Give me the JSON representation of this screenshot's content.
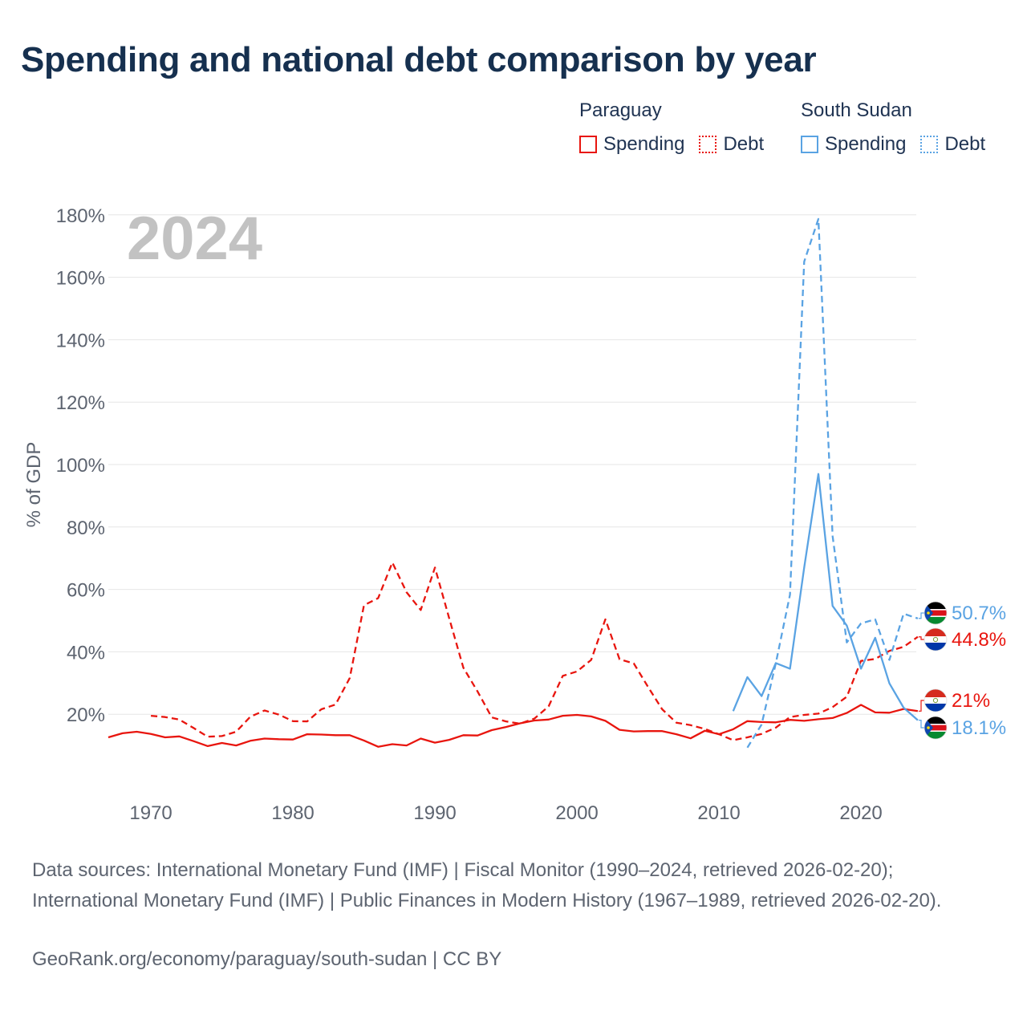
{
  "title": "Spending and national debt comparison by year",
  "legend": {
    "groups": [
      {
        "country": "Paraguay",
        "spending_label": "Spending",
        "debt_label": "Debt",
        "color": "#e8150e"
      },
      {
        "country": "South Sudan",
        "spending_label": "Spending",
        "debt_label": "Debt",
        "color": "#5aa3e3"
      }
    ]
  },
  "year_watermark": "2024",
  "flags": [
    {
      "name": "south-sudan-flag-icon",
      "country": "South Sudan",
      "series": "debt"
    },
    {
      "name": "paraguay-flag-icon",
      "country": "Paraguay",
      "series": "debt"
    },
    {
      "name": "paraguay-flag-icon",
      "country": "Paraguay",
      "series": "spending"
    },
    {
      "name": "south-sudan-flag-icon",
      "country": "South Sudan",
      "series": "spending"
    }
  ],
  "footer": {
    "source": "Data sources: International Monetary Fund (IMF) | Fiscal Monitor (1990–2024, retrieved 2026-02-20); International Monetary Fund (IMF) | Public Finances in Modern History (1967–1989, retrieved 2026-02-20).",
    "credit": "GeoRank.org/economy/paraguay/south-sudan | CC BY"
  },
  "chart_data": {
    "type": "line",
    "title": "Spending and national debt comparison by year",
    "xlabel": "",
    "ylabel": "% of GDP",
    "xlim": [
      1967,
      2024
    ],
    "ylim": [
      0,
      180
    ],
    "xticks": [
      1970,
      1980,
      1990,
      2000,
      2010,
      2020
    ],
    "yticks": [
      20,
      40,
      60,
      80,
      100,
      120,
      140,
      160,
      180
    ],
    "ytick_labels": [
      "20%",
      "40%",
      "60%",
      "80%",
      "100%",
      "120%",
      "140%",
      "160%",
      "180%"
    ],
    "grid": true,
    "series": [
      {
        "name": "Paraguay Spending",
        "country": "Paraguay",
        "kind": "Spending",
        "color": "#e8150e",
        "dash": "solid",
        "end_label": "21%",
        "points": [
          [
            1967,
            12.6
          ],
          [
            1968,
            13.9
          ],
          [
            1969,
            14.4
          ],
          [
            1970,
            13.7
          ],
          [
            1971,
            12.6
          ],
          [
            1972,
            12.9
          ],
          [
            1973,
            11.4
          ],
          [
            1974,
            9.8
          ],
          [
            1975,
            10.8
          ],
          [
            1976,
            10.0
          ],
          [
            1977,
            11.5
          ],
          [
            1978,
            12.2
          ],
          [
            1979,
            12.0
          ],
          [
            1980,
            11.9
          ],
          [
            1981,
            13.6
          ],
          [
            1982,
            13.5
          ],
          [
            1983,
            13.3
          ],
          [
            1984,
            13.3
          ],
          [
            1985,
            11.6
          ],
          [
            1986,
            9.6
          ],
          [
            1987,
            10.4
          ],
          [
            1988,
            10.0
          ],
          [
            1989,
            12.2
          ],
          [
            1990,
            10.9
          ],
          [
            1991,
            11.8
          ],
          [
            1992,
            13.3
          ],
          [
            1993,
            13.2
          ],
          [
            1994,
            14.9
          ],
          [
            1995,
            15.9
          ],
          [
            1996,
            17.1
          ],
          [
            1997,
            18.0
          ],
          [
            1998,
            18.3
          ],
          [
            1999,
            19.5
          ],
          [
            2000,
            19.8
          ],
          [
            2001,
            19.3
          ],
          [
            2002,
            17.9
          ],
          [
            2003,
            15.0
          ],
          [
            2004,
            14.5
          ],
          [
            2005,
            14.6
          ],
          [
            2006,
            14.6
          ],
          [
            2007,
            13.6
          ],
          [
            2008,
            12.3
          ],
          [
            2009,
            14.7
          ],
          [
            2010,
            13.6
          ],
          [
            2011,
            15.2
          ],
          [
            2012,
            17.8
          ],
          [
            2013,
            17.5
          ],
          [
            2014,
            17.4
          ],
          [
            2015,
            18.2
          ],
          [
            2016,
            17.9
          ],
          [
            2017,
            18.4
          ],
          [
            2018,
            18.8
          ],
          [
            2019,
            20.4
          ],
          [
            2020,
            23.0
          ],
          [
            2021,
            20.6
          ],
          [
            2022,
            20.5
          ],
          [
            2023,
            21.7
          ],
          [
            2024,
            21.0
          ]
        ]
      },
      {
        "name": "Paraguay Debt",
        "country": "Paraguay",
        "kind": "Debt",
        "color": "#e8150e",
        "dash": "dashed",
        "end_label": "44.8%",
        "points": [
          [
            1970,
            19.5
          ],
          [
            1971,
            19.1
          ],
          [
            1972,
            18.3
          ],
          [
            1973,
            15.6
          ],
          [
            1974,
            12.8
          ],
          [
            1975,
            13.0
          ],
          [
            1976,
            14.4
          ],
          [
            1977,
            19.2
          ],
          [
            1978,
            21.2
          ],
          [
            1979,
            19.9
          ],
          [
            1980,
            17.8
          ],
          [
            1981,
            17.7
          ],
          [
            1982,
            21.6
          ],
          [
            1983,
            23.1
          ],
          [
            1984,
            31.6
          ],
          [
            1985,
            54.9
          ],
          [
            1986,
            57.2
          ],
          [
            1987,
            68.6
          ],
          [
            1988,
            59.1
          ],
          [
            1989,
            53.4
          ],
          [
            1990,
            67.0
          ],
          [
            1991,
            50.8
          ],
          [
            1992,
            34.9
          ],
          [
            1993,
            27.3
          ],
          [
            1994,
            19.0
          ],
          [
            1995,
            17.7
          ],
          [
            1996,
            17.0
          ],
          [
            1997,
            18.6
          ],
          [
            1998,
            22.5
          ],
          [
            1999,
            32.3
          ],
          [
            2000,
            33.7
          ],
          [
            2001,
            37.4
          ],
          [
            2002,
            50.4
          ],
          [
            2003,
            37.6
          ],
          [
            2004,
            36.3
          ],
          [
            2005,
            28.8
          ],
          [
            2006,
            21.6
          ],
          [
            2007,
            17.3
          ],
          [
            2008,
            16.5
          ],
          [
            2009,
            15.3
          ],
          [
            2010,
            13.6
          ],
          [
            2011,
            11.7
          ],
          [
            2012,
            12.6
          ],
          [
            2013,
            13.7
          ],
          [
            2014,
            15.7
          ],
          [
            2015,
            19.1
          ],
          [
            2016,
            19.8
          ],
          [
            2017,
            20.2
          ],
          [
            2018,
            22.3
          ],
          [
            2019,
            25.6
          ],
          [
            2020,
            37.1
          ],
          [
            2021,
            37.7
          ],
          [
            2022,
            40.3
          ],
          [
            2023,
            41.6
          ],
          [
            2024,
            44.8
          ]
        ]
      },
      {
        "name": "South Sudan Spending",
        "country": "South Sudan",
        "kind": "Spending",
        "color": "#5aa3e3",
        "dash": "solid",
        "end_label": "18.1%",
        "points": [
          [
            2011,
            21.0
          ],
          [
            2012,
            31.9
          ],
          [
            2013,
            25.8
          ],
          [
            2014,
            36.4
          ],
          [
            2015,
            34.6
          ],
          [
            2016,
            67.0
          ],
          [
            2017,
            97.0
          ],
          [
            2018,
            54.7
          ],
          [
            2019,
            48.4
          ],
          [
            2020,
            34.6
          ],
          [
            2021,
            44.5
          ],
          [
            2022,
            29.9
          ],
          [
            2023,
            22.1
          ],
          [
            2024,
            18.1
          ]
        ]
      },
      {
        "name": "South Sudan Debt",
        "country": "South Sudan",
        "kind": "Debt",
        "color": "#5aa3e3",
        "dash": "dashed",
        "end_label": "50.7%",
        "points": [
          [
            2012,
            9.3
          ],
          [
            2013,
            16.7
          ],
          [
            2014,
            36.3
          ],
          [
            2015,
            58.3
          ],
          [
            2016,
            165.0
          ],
          [
            2017,
            178.7
          ],
          [
            2018,
            77.1
          ],
          [
            2019,
            43.0
          ],
          [
            2020,
            49.1
          ],
          [
            2021,
            50.4
          ],
          [
            2022,
            37.4
          ],
          [
            2023,
            52.2
          ],
          [
            2024,
            50.7
          ]
        ]
      }
    ]
  }
}
